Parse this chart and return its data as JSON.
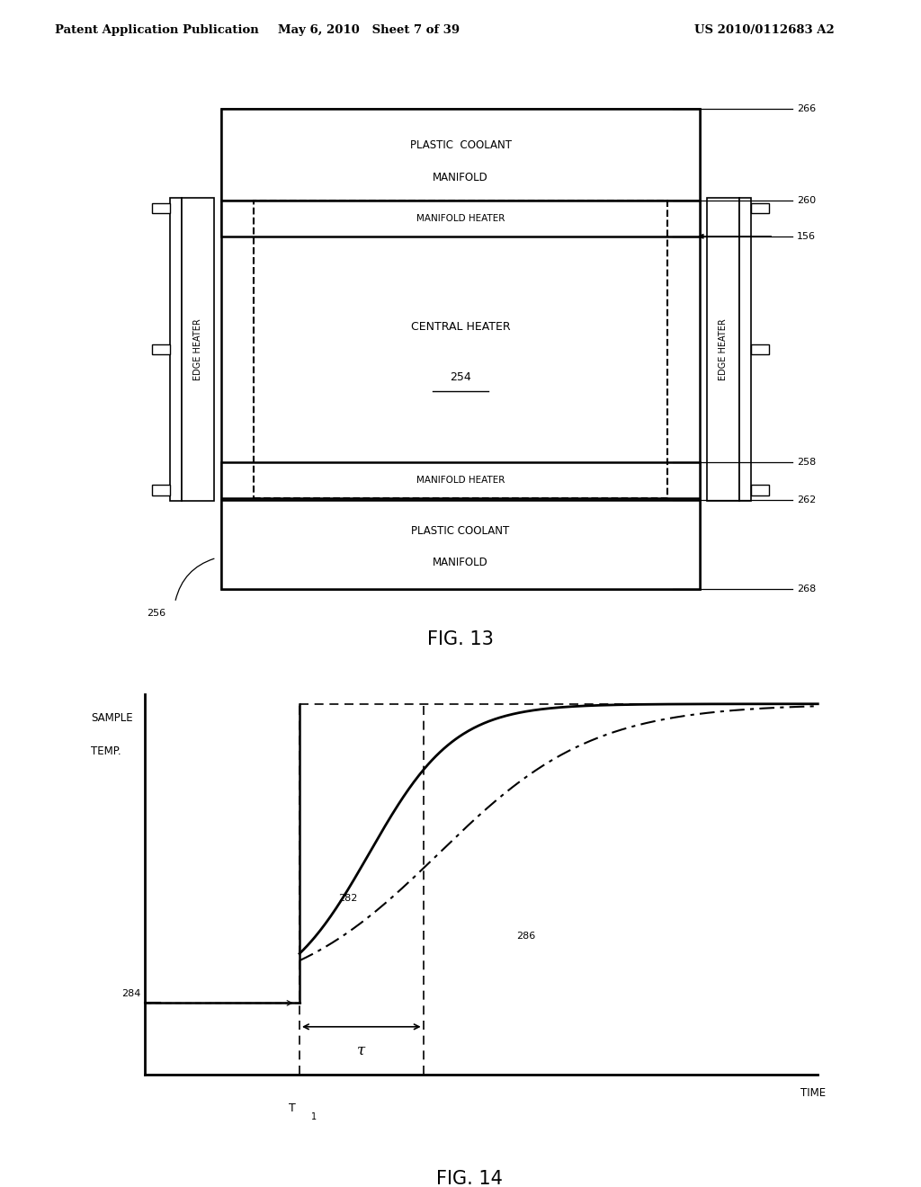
{
  "bg_color": "#ffffff",
  "header_left": "Patent Application Publication",
  "header_mid": "May 6, 2010   Sheet 7 of 39",
  "header_right": "US 2010/0112683 A2",
  "fig13_caption": "FIG. 13",
  "fig14_caption": "FIG. 14",
  "diagram": {
    "top_band_label1": "PLASTIC  COOLANT",
    "top_band_label2": "MANIFOLD",
    "top_heater_label": "MANIFOLD HEATER",
    "central_label": "CENTRAL HEATER",
    "central_num": "254",
    "bottom_heater_label": "MANIFOLD HEATER",
    "bottom_band_label1": "PLASTIC COOLANT",
    "bottom_band_label2": "MANIFOLD",
    "left_edge_label": "EDGE HEATER",
    "right_edge_label": "EDGE HEATER",
    "ref_266": "266",
    "ref_260": "260",
    "ref_156": "156",
    "ref_258": "258",
    "ref_262": "262",
    "ref_268": "268",
    "ref_256": "256"
  },
  "graph": {
    "xlabel": "TIME",
    "ylabel_line1": "SAMPLE",
    "ylabel_line2": "TEMP.",
    "ref_284": "284",
    "ref_282": "282",
    "ref_286": "286",
    "tau_label": "τ",
    "T1_char": "T",
    "T1_sub": "1"
  }
}
